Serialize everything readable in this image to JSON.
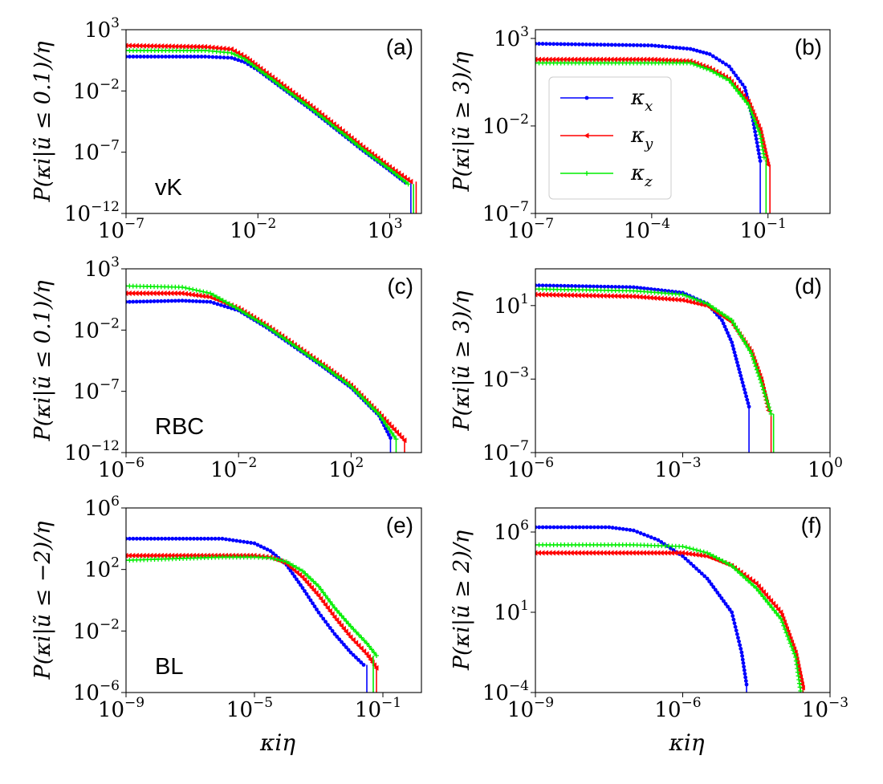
{
  "chart_data": [
    {
      "panel": "(a)",
      "type": "line",
      "dataset_label": "vK",
      "ylabel": "P(κi|ũ ≤ 0.1)/η",
      "xlabel": "",
      "xlim_log10": [
        -7,
        4.2
      ],
      "ylim_log10": [
        -12,
        3
      ],
      "xticks": [
        {
          "b": "10",
          "e": "−7",
          "v": -7
        },
        {
          "b": "10",
          "e": "−2",
          "v": -2
        },
        {
          "b": "10",
          "e": "3",
          "v": 3
        }
      ],
      "yticks": [
        {
          "b": "10",
          "e": "−12",
          "v": -12
        },
        {
          "b": "10",
          "e": "−7",
          "v": -7
        },
        {
          "b": "10",
          "e": "−2",
          "v": -2
        },
        {
          "b": "10",
          "e": "3",
          "v": 3
        }
      ],
      "series": [
        {
          "name": "κx",
          "color": "#0000ff",
          "marker": "dot",
          "drop_x": 3.8,
          "points": [
            [
              -7,
              0.8
            ],
            [
              -4,
              0.8
            ],
            [
              -3,
              0.7
            ],
            [
              -2.5,
              0.35
            ],
            [
              -2,
              -0.3
            ],
            [
              -1,
              -1.9
            ],
            [
              0,
              -3.5
            ],
            [
              1,
              -5.2
            ],
            [
              2,
              -6.9
            ],
            [
              3,
              -8.5
            ],
            [
              3.6,
              -9.5
            ]
          ]
        },
        {
          "name": "κy",
          "color": "#ff0000",
          "marker": "tri",
          "drop_x": 4.0,
          "points": [
            [
              -7,
              1.7
            ],
            [
              -4,
              1.6
            ],
            [
              -3,
              1.4
            ],
            [
              -2.5,
              0.8
            ],
            [
              -2,
              0.0
            ],
            [
              -1,
              -1.6
            ],
            [
              0,
              -3.2
            ],
            [
              1,
              -4.9
            ],
            [
              2,
              -6.6
            ],
            [
              3,
              -8.2
            ],
            [
              3.8,
              -9.4
            ]
          ]
        },
        {
          "name": "κz",
          "color": "#00ee00",
          "marker": "plus",
          "drop_x": 3.9,
          "points": [
            [
              -7,
              1.3
            ],
            [
              -4,
              1.3
            ],
            [
              -3,
              1.1
            ],
            [
              -2.5,
              0.6
            ],
            [
              -2,
              -0.2
            ],
            [
              -1,
              -1.8
            ],
            [
              0,
              -3.4
            ],
            [
              1,
              -5.1
            ],
            [
              2,
              -6.8
            ],
            [
              3,
              -8.4
            ],
            [
              3.7,
              -9.6
            ]
          ]
        }
      ]
    },
    {
      "panel": "(b)",
      "type": "line",
      "ylabel": "P(κi|ũ ≥ 3)/η",
      "xlabel": "",
      "xlim_log10": [
        -7,
        0.6
      ],
      "ylim_log10": [
        -7,
        3.5
      ],
      "xticks": [
        {
          "b": "10",
          "e": "−7",
          "v": -7
        },
        {
          "b": "10",
          "e": "−4",
          "v": -4
        },
        {
          "b": "10",
          "e": "−1",
          "v": -1
        }
      ],
      "yticks": [
        {
          "b": "10",
          "e": "−7",
          "v": -7
        },
        {
          "b": "10",
          "e": "−2",
          "v": -2
        },
        {
          "b": "10",
          "e": "3",
          "v": 3
        }
      ],
      "series": [
        {
          "name": "κx",
          "color": "#0000ff",
          "marker": "dot",
          "drop_x": -1.2,
          "points": [
            [
              -7,
              2.7
            ],
            [
              -4,
              2.6
            ],
            [
              -3,
              2.4
            ],
            [
              -2.5,
              2.1
            ],
            [
              -2,
              1.4
            ],
            [
              -1.6,
              0.2
            ],
            [
              -1.4,
              -1.5
            ],
            [
              -1.2,
              -4.0
            ]
          ]
        },
        {
          "name": "κy",
          "color": "#ff0000",
          "marker": "tri",
          "drop_x": -0.95,
          "points": [
            [
              -7,
              1.8
            ],
            [
              -4,
              1.8
            ],
            [
              -3,
              1.7
            ],
            [
              -2.5,
              1.3
            ],
            [
              -2,
              0.7
            ],
            [
              -1.5,
              -0.6
            ],
            [
              -1.2,
              -2.2
            ],
            [
              -1.0,
              -4.2
            ]
          ]
        },
        {
          "name": "κz",
          "color": "#00ee00",
          "marker": "plus",
          "drop_x": -1.05,
          "points": [
            [
              -7,
              1.6
            ],
            [
              -4,
              1.6
            ],
            [
              -3,
              1.6
            ],
            [
              -2.5,
              1.2
            ],
            [
              -2,
              0.6
            ],
            [
              -1.5,
              -0.8
            ],
            [
              -1.2,
              -2.5
            ],
            [
              -1.1,
              -3.8
            ]
          ]
        }
      ]
    },
    {
      "panel": "(c)",
      "type": "line",
      "dataset_label": "RBC",
      "ylabel": "P(κi|ũ ≤ 0.1)/η",
      "xlabel": "",
      "xlim_log10": [
        -6,
        4.5
      ],
      "ylim_log10": [
        -12,
        3
      ],
      "xticks": [
        {
          "b": "10",
          "e": "−6",
          "v": -6
        },
        {
          "b": "10",
          "e": "−2",
          "v": -2
        },
        {
          "b": "10",
          "e": "2",
          "v": 2
        }
      ],
      "yticks": [
        {
          "b": "10",
          "e": "−12",
          "v": -12
        },
        {
          "b": "10",
          "e": "−7",
          "v": -7
        },
        {
          "b": "10",
          "e": "−2",
          "v": -2
        },
        {
          "b": "10",
          "e": "3",
          "v": 3
        }
      ],
      "series": [
        {
          "name": "κx",
          "color": "#0000ff",
          "marker": "dot",
          "drop_x": 3.4,
          "points": [
            [
              -6,
              0.3
            ],
            [
              -4,
              0.4
            ],
            [
              -3,
              0.3
            ],
            [
              -2,
              -0.4
            ],
            [
              -1,
              -1.8
            ],
            [
              0,
              -3.4
            ],
            [
              1,
              -5.0
            ],
            [
              2,
              -6.7
            ],
            [
              3,
              -9.0
            ],
            [
              3.4,
              -10.8
            ]
          ]
        },
        {
          "name": "κy",
          "color": "#ff0000",
          "marker": "tri",
          "drop_x": 3.9,
          "points": [
            [
              -6,
              1.0
            ],
            [
              -4,
              1.0
            ],
            [
              -3,
              0.7
            ],
            [
              -2,
              -0.2
            ],
            [
              -1,
              -1.6
            ],
            [
              0,
              -3.2
            ],
            [
              1,
              -4.8
            ],
            [
              2,
              -6.5
            ],
            [
              3,
              -8.8
            ],
            [
              3.9,
              -11.0
            ]
          ]
        },
        {
          "name": "κz",
          "color": "#00ee00",
          "marker": "plus",
          "drop_x": 3.6,
          "points": [
            [
              -6,
              1.6
            ],
            [
              -4,
              1.5
            ],
            [
              -3,
              1.0
            ],
            [
              -2,
              -0.3
            ],
            [
              -1,
              -1.7
            ],
            [
              0,
              -3.3
            ],
            [
              1,
              -4.9
            ],
            [
              2,
              -6.6
            ],
            [
              3,
              -8.9
            ],
            [
              3.6,
              -10.9
            ]
          ]
        }
      ]
    },
    {
      "panel": "(d)",
      "type": "line",
      "ylabel": "P(κi|ũ ≥ 3)/η",
      "xlabel": "",
      "xlim_log10": [
        -6,
        0
      ],
      "ylim_log10": [
        -7,
        3
      ],
      "xticks": [
        {
          "b": "10",
          "e": "−6",
          "v": -6
        },
        {
          "b": "10",
          "e": "−3",
          "v": -3
        },
        {
          "b": "10",
          "e": "0",
          "v": 0
        }
      ],
      "yticks": [
        {
          "b": "10",
          "e": "−7",
          "v": -7
        },
        {
          "b": "10",
          "e": "−3",
          "v": -3
        },
        {
          "b": "10",
          "e": "1",
          "v": 1
        }
      ],
      "series": [
        {
          "name": "κx",
          "color": "#0000ff",
          "marker": "dot",
          "drop_x": -1.65,
          "points": [
            [
              -6,
              2.1
            ],
            [
              -4,
              2.0
            ],
            [
              -3,
              1.7
            ],
            [
              -2.5,
              1.1
            ],
            [
              -2.2,
              0.2
            ],
            [
              -2.0,
              -1.0
            ],
            [
              -1.8,
              -3.0
            ],
            [
              -1.65,
              -4.5
            ]
          ]
        },
        {
          "name": "κy",
          "color": "#ff0000",
          "marker": "tri",
          "drop_x": -1.2,
          "points": [
            [
              -6,
              1.6
            ],
            [
              -4,
              1.5
            ],
            [
              -3,
              1.3
            ],
            [
              -2.5,
              1.0
            ],
            [
              -2.0,
              0.1
            ],
            [
              -1.6,
              -1.5
            ],
            [
              -1.4,
              -3.0
            ],
            [
              -1.25,
              -4.7
            ]
          ]
        },
        {
          "name": "κz",
          "color": "#00ee00",
          "marker": "plus",
          "drop_x": -1.15,
          "points": [
            [
              -6,
              1.9
            ],
            [
              -4,
              1.8
            ],
            [
              -3,
              1.6
            ],
            [
              -2.5,
              1.1
            ],
            [
              -2.0,
              0.2
            ],
            [
              -1.6,
              -1.6
            ],
            [
              -1.4,
              -3.2
            ],
            [
              -1.2,
              -4.9
            ]
          ]
        }
      ]
    },
    {
      "panel": "(e)",
      "type": "line",
      "dataset_label": "BL",
      "ylabel": "P(κi|ũ ≤ −2)/η",
      "xlabel": "κiη",
      "xlim_log10": [
        -9,
        0.2
      ],
      "ylim_log10": [
        -6,
        6
      ],
      "xticks": [
        {
          "b": "10",
          "e": "−9",
          "v": -9
        },
        {
          "b": "10",
          "e": "−5",
          "v": -5
        },
        {
          "b": "10",
          "e": "−1",
          "v": -1
        }
      ],
      "yticks": [
        {
          "b": "10",
          "e": "−6",
          "v": -6
        },
        {
          "b": "10",
          "e": "−2",
          "v": -2
        },
        {
          "b": "10",
          "e": "2",
          "v": 2
        },
        {
          "b": "10",
          "e": "6",
          "v": 6
        }
      ],
      "series": [
        {
          "name": "κx",
          "color": "#0000ff",
          "marker": "dot",
          "drop_x": -1.5,
          "points": [
            [
              -9,
              4.0
            ],
            [
              -6,
              4.0
            ],
            [
              -5,
              3.7
            ],
            [
              -4.5,
              3.2
            ],
            [
              -4,
              2.3
            ],
            [
              -3.5,
              0.8
            ],
            [
              -3,
              -0.8
            ],
            [
              -2.5,
              -2.2
            ],
            [
              -2,
              -3.4
            ],
            [
              -1.6,
              -4.2
            ]
          ]
        },
        {
          "name": "κy",
          "color": "#ff0000",
          "marker": "tri",
          "drop_x": -1.2,
          "points": [
            [
              -9,
              2.9
            ],
            [
              -6,
              2.9
            ],
            [
              -5,
              2.9
            ],
            [
              -4.5,
              2.8
            ],
            [
              -4,
              2.4
            ],
            [
              -3.5,
              1.5
            ],
            [
              -3,
              0.3
            ],
            [
              -2.5,
              -1.1
            ],
            [
              -2,
              -2.4
            ],
            [
              -1.5,
              -3.5
            ],
            [
              -1.2,
              -4.4
            ]
          ]
        },
        {
          "name": "κz",
          "color": "#00ee00",
          "marker": "plus",
          "drop_x": -1.3,
          "points": [
            [
              -9,
              2.6
            ],
            [
              -6,
              2.8
            ],
            [
              -5,
              2.8
            ],
            [
              -4.5,
              2.75
            ],
            [
              -4,
              2.5
            ],
            [
              -3.5,
              1.9
            ],
            [
              -3,
              0.9
            ],
            [
              -2.5,
              -0.5
            ],
            [
              -2,
              -1.7
            ],
            [
              -1.5,
              -2.8
            ],
            [
              -1.2,
              -3.6
            ]
          ]
        }
      ]
    },
    {
      "panel": "(f)",
      "type": "line",
      "ylabel": "P(κi|ũ ≥ 2)/η",
      "xlabel": "κiη",
      "xlim_log10": [
        -9,
        -3
      ],
      "ylim_log10": [
        -4,
        7.5
      ],
      "xticks": [
        {
          "b": "10",
          "e": "−9",
          "v": -9
        },
        {
          "b": "10",
          "e": "−6",
          "v": -6
        },
        {
          "b": "10",
          "e": "−3",
          "v": -3
        }
      ],
      "yticks": [
        {
          "b": "10",
          "e": "−4",
          "v": -4
        },
        {
          "b": "10",
          "e": "1",
          "v": 1
        },
        {
          "b": "10",
          "e": "6",
          "v": 6
        }
      ],
      "series": [
        {
          "name": "κx",
          "color": "#0000ff",
          "marker": "dot",
          "drop_x": -4.7,
          "points": [
            [
              -9,
              6.3
            ],
            [
              -7.5,
              6.3
            ],
            [
              -7,
              6.1
            ],
            [
              -6.5,
              5.5
            ],
            [
              -6,
              4.5
            ],
            [
              -5.5,
              3.1
            ],
            [
              -5,
              1.0
            ],
            [
              -4.8,
              -1.5
            ],
            [
              -4.7,
              -3.5
            ]
          ]
        },
        {
          "name": "κy",
          "color": "#ff0000",
          "marker": "tri",
          "drop_x": -3.55,
          "points": [
            [
              -9,
              4.7
            ],
            [
              -7,
              4.7
            ],
            [
              -6,
              4.7
            ],
            [
              -5.5,
              4.5
            ],
            [
              -5,
              3.9
            ],
            [
              -4.5,
              2.8
            ],
            [
              -4,
              1.0
            ],
            [
              -3.7,
              -1.5
            ],
            [
              -3.55,
              -3.7
            ]
          ]
        },
        {
          "name": "κz",
          "color": "#00ee00",
          "marker": "plus",
          "drop_x": -3.6,
          "points": [
            [
              -9,
              5.2
            ],
            [
              -7,
              5.2
            ],
            [
              -6,
              5.1
            ],
            [
              -5.5,
              4.7
            ],
            [
              -5,
              3.9
            ],
            [
              -4.5,
              2.5
            ],
            [
              -4,
              0.6
            ],
            [
              -3.7,
              -1.8
            ],
            [
              -3.6,
              -3.9
            ]
          ]
        }
      ]
    }
  ],
  "legend": {
    "location": "panel (b), left",
    "entries": [
      {
        "label": "κ",
        "sub": "x",
        "color": "#0000ff",
        "marker": "dot"
      },
      {
        "label": "κ",
        "sub": "y",
        "color": "#ff0000",
        "marker": "tri"
      },
      {
        "label": "κ",
        "sub": "z",
        "color": "#00ee00",
        "marker": "plus"
      }
    ]
  }
}
